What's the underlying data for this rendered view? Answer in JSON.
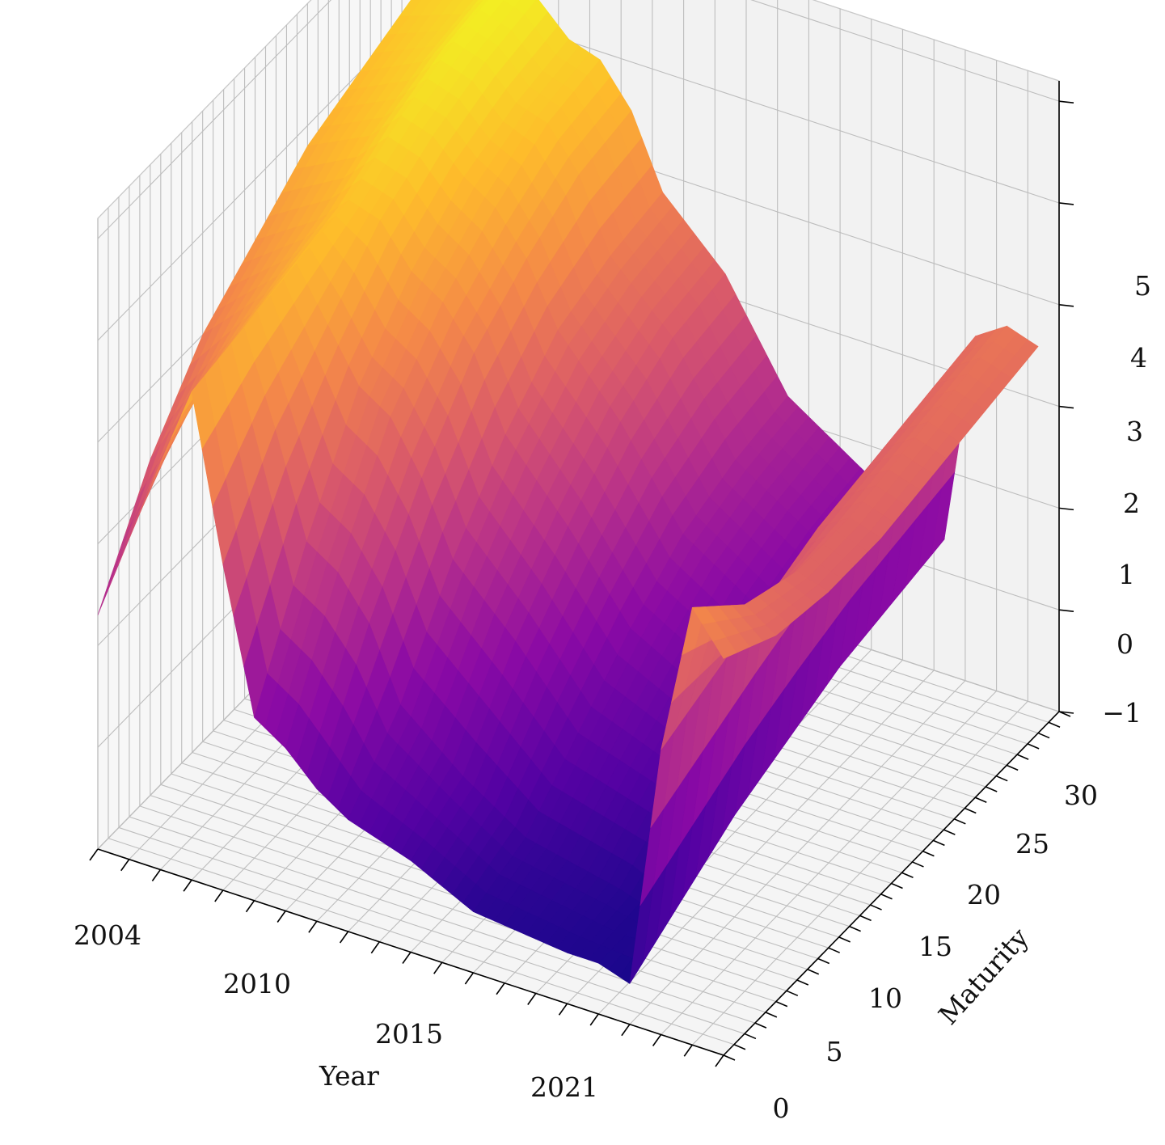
{
  "chart_data": {
    "type": "surface3d",
    "title": "",
    "xlabel": "Year",
    "ylabel": "Maturity",
    "zlabel": "",
    "x_ticks": [
      "2004",
      "2010",
      "2015",
      "2021"
    ],
    "y_ticks": [
      "0",
      "5",
      "10",
      "15",
      "20",
      "25",
      "30"
    ],
    "z_ticks": [
      "−1",
      "0",
      "1",
      "2",
      "3",
      "4",
      "5"
    ],
    "xlim": [
      2004,
      2024
    ],
    "ylim": [
      0,
      32
    ],
    "zlim": [
      -1,
      5.2
    ],
    "colormap": "plasma",
    "grid": true,
    "years": [
      2004,
      2006,
      2007,
      2008,
      2009,
      2010,
      2011,
      2012,
      2014,
      2016,
      2019,
      2020,
      2021,
      2022,
      2023,
      2024
    ],
    "maturities": [
      0,
      5,
      10,
      15,
      20,
      25,
      30
    ],
    "z_values": [
      [
        1.3,
        2.3,
        3.0,
        3.4,
        3.8,
        4.0,
        4.2
      ],
      [
        3.0,
        3.4,
        3.6,
        3.8,
        4.1,
        4.3,
        4.4
      ],
      [
        3.8,
        3.9,
        4.0,
        4.1,
        4.4,
        4.6,
        4.7
      ],
      [
        2.2,
        3.0,
        3.5,
        4.0,
        4.3,
        4.5,
        4.6
      ],
      [
        0.8,
        2.0,
        3.0,
        3.6,
        4.0,
        4.2,
        4.3
      ],
      [
        0.6,
        1.8,
        2.8,
        3.4,
        3.8,
        4.1,
        4.2
      ],
      [
        0.3,
        1.4,
        2.3,
        3.0,
        3.4,
        3.7,
        3.8
      ],
      [
        0.1,
        0.7,
        1.6,
        2.3,
        2.8,
        3.0,
        3.1
      ],
      [
        -0.1,
        0.2,
        1.0,
        1.6,
        2.1,
        2.4,
        2.5
      ],
      [
        -0.4,
        -0.2,
        0.3,
        0.8,
        1.2,
        1.4,
        1.5
      ],
      [
        -0.5,
        -0.4,
        0.0,
        0.3,
        0.6,
        0.8,
        0.9
      ],
      [
        -0.5,
        -0.5,
        -0.3,
        0.0,
        0.2,
        0.3,
        0.4
      ],
      [
        -0.6,
        -0.3,
        0.0,
        0.2,
        0.4,
        0.5,
        0.6
      ],
      [
        1.8,
        2.0,
        2.2,
        2.4,
        2.5,
        2.6,
        2.7
      ],
      [
        3.3,
        2.8,
        2.6,
        2.6,
        2.7,
        2.8,
        2.9
      ],
      [
        2.9,
        2.6,
        2.5,
        2.5,
        2.6,
        2.7,
        2.8
      ]
    ]
  }
}
